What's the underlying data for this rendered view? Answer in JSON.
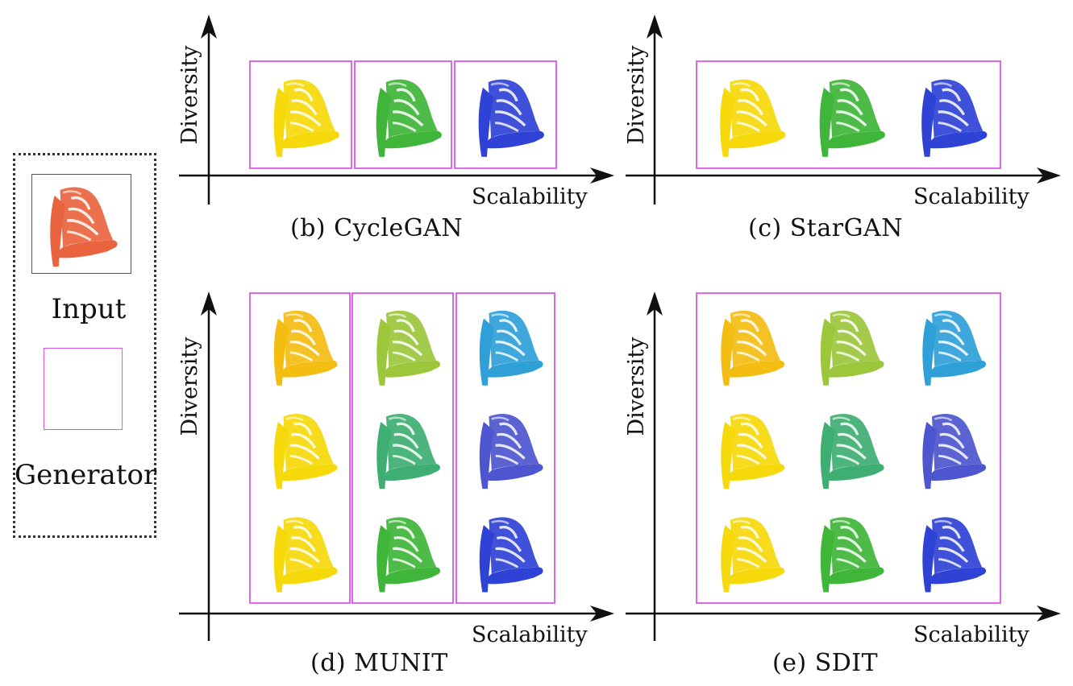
{
  "legend": {
    "input_label": "Input",
    "generator_label": "Generator",
    "input_shoe_color": "#e9643e",
    "generator_box_color": "#dd55ee"
  },
  "axis_labels": {
    "x": "Scalability",
    "y": "Diversity"
  },
  "panels": [
    {
      "id": "b",
      "caption": "(b)  CycleGAN",
      "generator_layout": "one-box-per-column",
      "columns": [
        [
          "yellow"
        ],
        [
          "green"
        ],
        [
          "blue"
        ]
      ]
    },
    {
      "id": "c",
      "caption": "(c)  StarGAN",
      "generator_layout": "single-box",
      "columns": [
        [
          "yellow"
        ],
        [
          "green"
        ],
        [
          "blue"
        ]
      ]
    },
    {
      "id": "d",
      "caption": "(d)  MUNIT",
      "generator_layout": "one-box-per-column",
      "columns": [
        [
          "yellow-orange",
          "yellow",
          "yellow"
        ],
        [
          "yellow-green",
          "teal-green",
          "green"
        ],
        [
          "cyan",
          "indigo",
          "blue"
        ]
      ]
    },
    {
      "id": "e",
      "caption": "(e)  SDIT",
      "generator_layout": "single-box",
      "columns": [
        [
          "yellow-orange",
          "yellow",
          "yellow"
        ],
        [
          "yellow-green",
          "teal-green",
          "green"
        ],
        [
          "cyan",
          "indigo",
          "blue"
        ]
      ]
    }
  ],
  "shoe_colors": {
    "yellow": "#f5d90a",
    "yellow-orange": "#f4bd12",
    "green": "#3fb53a",
    "yellow-green": "#9cc63c",
    "teal-green": "#3fae72",
    "blue": "#2f42d6",
    "cyan": "#2f9fd8",
    "indigo": "#4d56cf"
  }
}
